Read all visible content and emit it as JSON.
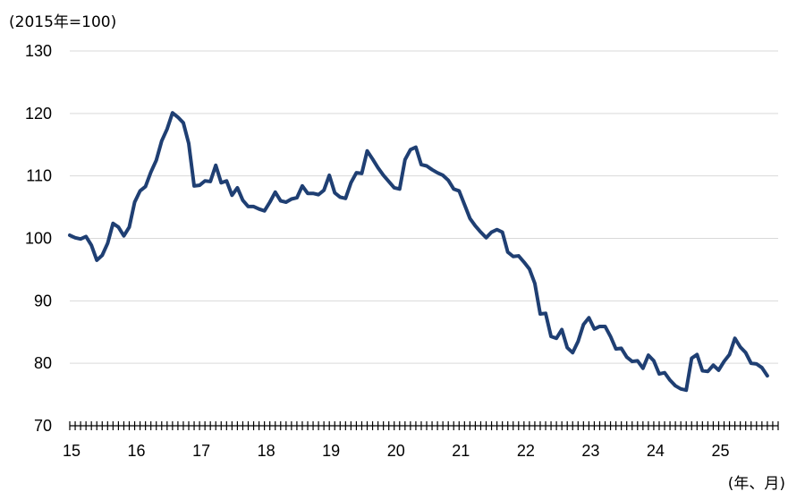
{
  "chart_data": {
    "type": "line",
    "title": "",
    "ylabel": "(2015年=100)",
    "xlabel": "(年、月)",
    "ylim": [
      70,
      130
    ],
    "yticks": [
      70,
      80,
      90,
      100,
      110,
      120,
      130
    ],
    "xlim": [
      2015.0,
      2025.917
    ],
    "xticks": [
      {
        "value": 2015,
        "label": "15"
      },
      {
        "value": 2016,
        "label": "16"
      },
      {
        "value": 2017,
        "label": "17"
      },
      {
        "value": 2018,
        "label": "18"
      },
      {
        "value": 2019,
        "label": "19"
      },
      {
        "value": 2020,
        "label": "20"
      },
      {
        "value": 2021,
        "label": "21"
      },
      {
        "value": 2022,
        "label": "22"
      },
      {
        "value": 2023,
        "label": "23"
      },
      {
        "value": 2024,
        "label": "24"
      },
      {
        "value": 2025,
        "label": "25"
      }
    ],
    "grid": true,
    "colors": {
      "series": "#1f3f73",
      "grid": "#d9d9d9"
    },
    "series": [
      {
        "name": "",
        "start": "2015-01",
        "values": [
          100.5,
          100.1,
          99.9,
          100.3,
          98.9,
          96.5,
          97.3,
          99.2,
          102.4,
          101.8,
          100.4,
          101.8,
          105.8,
          107.6,
          108.3,
          110.6,
          112.5,
          115.6,
          117.5,
          120.1,
          119.4,
          118.5,
          115.2,
          108.4,
          108.5,
          109.2,
          109.1,
          111.7,
          108.9,
          109.2,
          106.9,
          108.1,
          106.1,
          105.1,
          105.1,
          104.7,
          104.4,
          105.8,
          107.4,
          106.0,
          105.8,
          106.3,
          106.5,
          108.4,
          107.2,
          107.2,
          107.0,
          107.7,
          110.1,
          107.3,
          106.6,
          106.4,
          108.9,
          110.5,
          110.4,
          114.0,
          112.7,
          111.3,
          110.1,
          109.1,
          108.1,
          107.9,
          112.6,
          114.2,
          114.6,
          111.8,
          111.6,
          111.0,
          110.5,
          110.1,
          109.3,
          107.9,
          107.6,
          105.4,
          103.2,
          102.0,
          101.0,
          100.1,
          101.0,
          101.4,
          101.0,
          97.8,
          97.1,
          97.2,
          96.2,
          95.1,
          92.8,
          87.9,
          88.0,
          84.3,
          84.0,
          85.4,
          82.5,
          81.7,
          83.5,
          86.2,
          87.3,
          85.5,
          85.9,
          85.9,
          84.3,
          82.3,
          82.4,
          81.0,
          80.3,
          80.4,
          79.2,
          81.3,
          80.4,
          78.3,
          78.5,
          77.3,
          76.4,
          75.9,
          75.7,
          80.8,
          81.4,
          78.8,
          78.7,
          79.7,
          78.9,
          80.3,
          81.4,
          84.0,
          82.6,
          81.7,
          80.0,
          79.9,
          79.3,
          78.0
        ]
      }
    ]
  }
}
